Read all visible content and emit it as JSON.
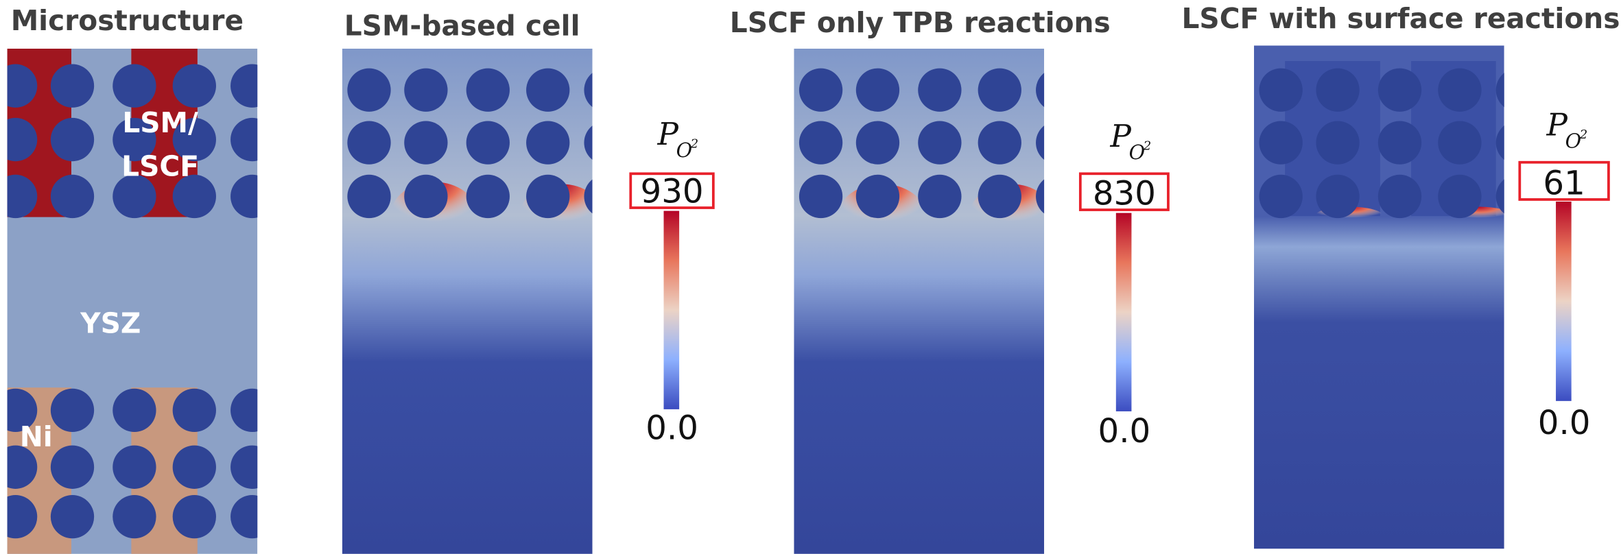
{
  "figure": {
    "panels": [
      {
        "title": "Microstructure",
        "labels": {
          "cathode": [
            "LSM/",
            "LSCF"
          ],
          "electrolyte": "YSZ",
          "anode": "Ni"
        }
      },
      {
        "title": "LSM-based cell",
        "colorbar": {
          "symbol": {
            "base": "P",
            "subscript": "O",
            "superscript": "2"
          },
          "max": "930",
          "min": "0.0"
        }
      },
      {
        "title": "LSCF only TPB reactions",
        "colorbar": {
          "symbol": {
            "base": "P",
            "subscript": "O",
            "superscript": "2"
          },
          "max": "830",
          "min": "0.0"
        }
      },
      {
        "title": "LSCF with surface reactions",
        "colorbar": {
          "symbol": {
            "base": "P",
            "subscript": "O",
            "superscript": "2"
          },
          "max": "61",
          "min": "0.0"
        }
      }
    ]
  }
}
